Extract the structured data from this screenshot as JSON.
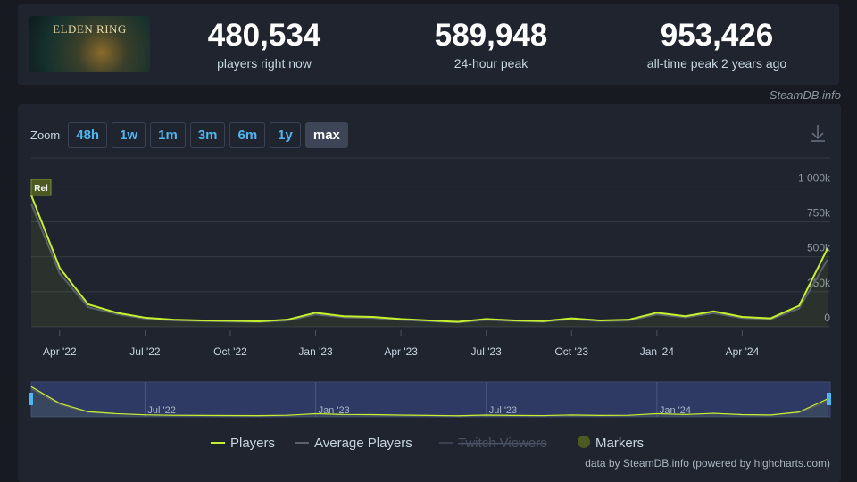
{
  "header": {
    "game": "ELDEN RING",
    "stats": [
      {
        "value": "480,534",
        "label": "players right now"
      },
      {
        "value": "589,948",
        "label": "24-hour peak"
      },
      {
        "value": "953,426",
        "label": "all-time peak 2 years ago"
      }
    ],
    "credit": "SteamDB.info"
  },
  "zoom": {
    "label": "Zoom",
    "options": [
      "48h",
      "1w",
      "1m",
      "3m",
      "6m",
      "1y",
      "max"
    ],
    "selected": "max"
  },
  "chart_data": {
    "type": "line",
    "x": [
      "2022-03",
      "2022-04",
      "2022-05",
      "2022-06",
      "2022-07",
      "2022-08",
      "2022-09",
      "2022-10",
      "2022-11",
      "2022-12",
      "2023-01",
      "2023-02",
      "2023-03",
      "2023-04",
      "2023-05",
      "2023-06",
      "2023-07",
      "2023-08",
      "2023-09",
      "2023-10",
      "2023-11",
      "2023-12",
      "2024-01",
      "2024-02",
      "2024-03",
      "2024-04",
      "2024-05",
      "2024-06",
      "2024-07"
    ],
    "series": [
      {
        "name": "Players",
        "color": "#c6f02c",
        "values": [
          940000,
          420000,
          160000,
          100000,
          65000,
          50000,
          45000,
          42000,
          38000,
          50000,
          100000,
          75000,
          70000,
          55000,
          45000,
          35000,
          55000,
          45000,
          40000,
          60000,
          45000,
          50000,
          100000,
          75000,
          110000,
          70000,
          60000,
          150000,
          560000
        ]
      },
      {
        "name": "Average Players",
        "color": "#5a606b",
        "values": [
          880000,
          380000,
          140000,
          90000,
          58000,
          45000,
          40000,
          37000,
          34000,
          44000,
          88000,
          67000,
          62000,
          49000,
          40000,
          31000,
          49000,
          40000,
          36000,
          53000,
          40000,
          44000,
          88000,
          67000,
          97000,
          62000,
          53000,
          130000,
          480000
        ]
      }
    ],
    "hidden_series": [
      "Twitch Viewers"
    ],
    "markers": {
      "name": "Markers",
      "points": [
        {
          "x": "2022-03",
          "label": "Rel"
        }
      ]
    },
    "xlim": [
      "2022-03",
      "2024-07"
    ],
    "xticks": [
      {
        "value": "2022-04",
        "label": "Apr '22"
      },
      {
        "value": "2022-07",
        "label": "Jul '22"
      },
      {
        "value": "2022-10",
        "label": "Oct '22"
      },
      {
        "value": "2023-01",
        "label": "Jan '23"
      },
      {
        "value": "2023-04",
        "label": "Apr '23"
      },
      {
        "value": "2023-07",
        "label": "Jul '23"
      },
      {
        "value": "2023-10",
        "label": "Oct '23"
      },
      {
        "value": "2024-01",
        "label": "Jan '24"
      },
      {
        "value": "2024-04",
        "label": "Apr '24"
      }
    ],
    "navigator_ticks": [
      {
        "value": "2022-07",
        "label": "Jul '22"
      },
      {
        "value": "2023-01",
        "label": "Jan '23"
      },
      {
        "value": "2023-07",
        "label": "Jul '23"
      },
      {
        "value": "2024-01",
        "label": "Jan '24"
      }
    ],
    "ylim": [
      0,
      1200000
    ],
    "yticks": [
      0,
      {
        "value": 250000,
        "label": "250k"
      },
      {
        "value": 500000,
        "label": "500k"
      },
      {
        "value": 750000,
        "label": "750k"
      },
      {
        "value": 1000000,
        "label": "1 000k"
      }
    ],
    "grid": true,
    "legend": "bottom",
    "source": "data by SteamDB.info (powered by highcharts.com)"
  }
}
